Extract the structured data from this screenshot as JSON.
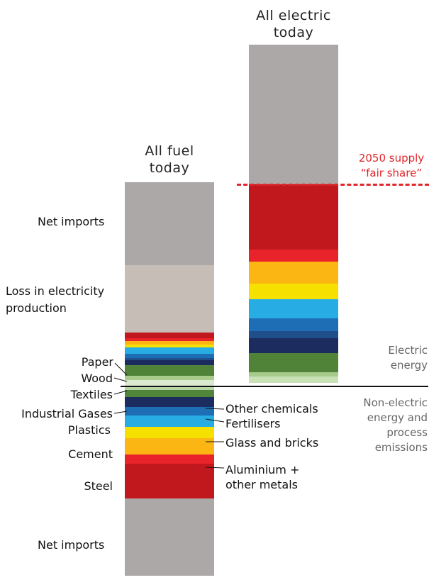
{
  "chart_data": {
    "type": "bar",
    "columns": [
      {
        "title_lines": [
          "All fuel",
          "today"
        ],
        "segments": [
          {
            "name": "Net imports (electric)",
            "color": "#aba8a7",
            "value": 117
          },
          {
            "name": "Loss in electricity production",
            "color": "#c5bdb6",
            "value": 95
          },
          {
            "name": "Steel (electric)",
            "color": "#c1181d",
            "value": 8
          },
          {
            "name": "Aluminium + other metals (electric)",
            "color": "#e8232a",
            "value": 4
          },
          {
            "name": "Cement (electric)",
            "color": "#fcb614",
            "value": 5
          },
          {
            "name": "Glass and bricks (electric)",
            "color": "#f5e000",
            "value": 4
          },
          {
            "name": "Plastics (electric)",
            "color": "#27ade4",
            "value": 9
          },
          {
            "name": "Fertilisers (electric)",
            "color": "#1d6eb5",
            "value": 6
          },
          {
            "name": "Industrial Gases (electric)",
            "color": "#1f4f8a",
            "value": 3
          },
          {
            "name": "Other chemicals (electric)",
            "color": "#1c2c5e",
            "value": 7
          },
          {
            "name": "Textiles (electric)",
            "color": "#50863a",
            "value": 2
          },
          {
            "name": "Paper (electric)",
            "color": "#508338",
            "value": 13
          },
          {
            "name": "Wood (electric)",
            "color": "#a8cb8c",
            "value": 6
          },
          {
            "name": "Textiles (non-electric)",
            "color": "#dae9cf",
            "value": 9
          },
          {
            "name": "Wood (non-electric)",
            "color": "#b8d6a3",
            "value": 5
          },
          {
            "name": "Paper (non-electric)",
            "color": "#50863a",
            "value": 10
          },
          {
            "name": "Other chemicals (non-electric)",
            "color": "#1c2c5e",
            "value": 14
          },
          {
            "name": "Fertilisers (non-electric)",
            "color": "#1d6eb5",
            "value": 12
          },
          {
            "name": "Plastics (non-electric)",
            "color": "#27ade4",
            "value": 16
          },
          {
            "name": "Glass and bricks (non-electric)",
            "color": "#f5e000",
            "value": 16
          },
          {
            "name": "Cement (non-electric)",
            "color": "#fcb614",
            "value": 23
          },
          {
            "name": "Aluminium + other metals (non-electric)",
            "color": "#e8232a",
            "value": 13
          },
          {
            "name": "Steel (non-electric)",
            "color": "#c1181d",
            "value": 49
          },
          {
            "name": "Net imports (non-electric)",
            "color": "#aba8a7",
            "value": 109
          }
        ]
      },
      {
        "title_lines": [
          "All electric",
          "today"
        ],
        "segments": [
          {
            "name": "Above supply",
            "color": "#aba8a7",
            "value": 197
          },
          {
            "name": "Steel",
            "color": "#c1181d",
            "value": 92
          },
          {
            "name": "Aluminium + other metals",
            "color": "#e8232a",
            "value": 17
          },
          {
            "name": "Cement",
            "color": "#fcb614",
            "value": 31
          },
          {
            "name": "Glass and bricks",
            "color": "#f5e000",
            "value": 22
          },
          {
            "name": "Plastics",
            "color": "#27ade4",
            "value": 27
          },
          {
            "name": "Fertilisers",
            "color": "#1d6eb5",
            "value": 18
          },
          {
            "name": "Industrial Gases",
            "color": "#1f4f8a",
            "value": 10
          },
          {
            "name": "Other chemicals",
            "color": "#1c2c5e",
            "value": 21
          },
          {
            "name": "Paper",
            "color": "#508338",
            "value": 27
          },
          {
            "name": "Wood",
            "color": "#a8cb8c",
            "value": 6
          },
          {
            "name": "Textiles",
            "color": "#c9e1b6",
            "value": 9
          }
        ]
      }
    ],
    "labels_left": [
      {
        "text": "Net imports",
        "segment": "Net imports (electric)"
      },
      {
        "text_lines": [
          "Loss in electricity",
          "production"
        ],
        "segment": "Loss in electricity production"
      },
      {
        "text": "Paper",
        "segment": "Paper (electric)"
      },
      {
        "text": "Wood",
        "segment": "Wood (electric)"
      },
      {
        "text": "Textiles",
        "segment": "Textiles (non-electric)"
      },
      {
        "text": "Industrial Gases",
        "segment": "Fertilisers (non-electric)"
      },
      {
        "text": "Plastics",
        "segment": "Plastics (non-electric)"
      },
      {
        "text": "Cement",
        "segment": "Cement (non-electric)"
      },
      {
        "text": "Steel",
        "segment": "Steel (non-electric)"
      },
      {
        "text": "Net imports",
        "segment": "Net imports (non-electric)"
      }
    ],
    "labels_right": [
      {
        "text": "Other chemicals",
        "segment": "Other chemicals (non-electric)"
      },
      {
        "text": "Fertilisers",
        "segment": "Fertilisers (non-electric)"
      },
      {
        "text": "Glass and bricks",
        "segment": "Glass and bricks (non-electric)"
      },
      {
        "text_lines": [
          "Aluminium +",
          "other metals"
        ],
        "segment": "Aluminium + other metals (non-electric)"
      }
    ],
    "annotations": {
      "fair_share_lines": [
        "2050 supply",
        "“fair share”"
      ],
      "electric_lines": [
        "Electric",
        "energy"
      ],
      "non_electric_lines": [
        "Non-electric",
        "energy and",
        "process",
        "emissions"
      ]
    },
    "colors": {
      "fair_share": "#e0262a",
      "divider": "#111111"
    }
  }
}
